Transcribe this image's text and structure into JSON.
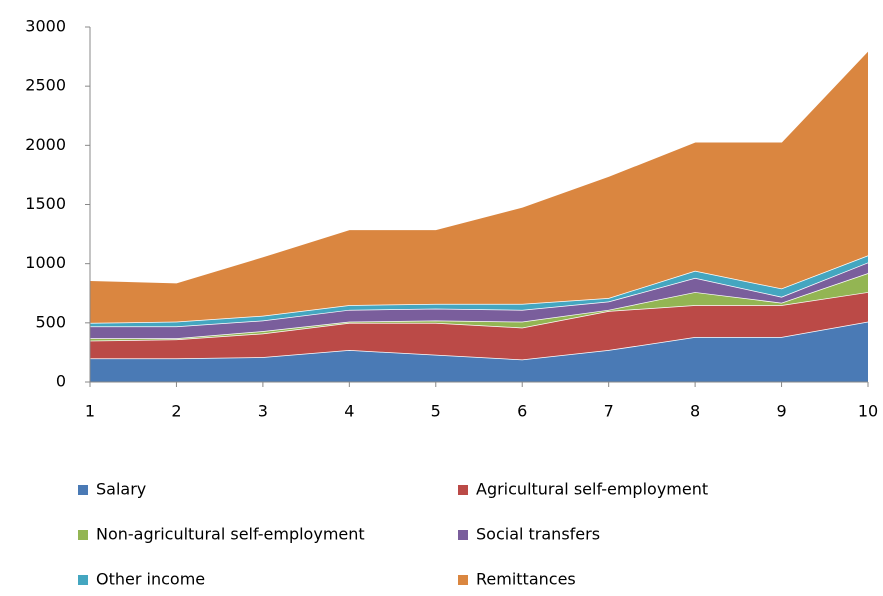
{
  "chart_data": {
    "type": "stacked_area",
    "x": [
      1,
      2,
      3,
      4,
      5,
      6,
      7,
      8,
      9,
      10
    ],
    "xlim": [
      1,
      10
    ],
    "xticks": [
      1,
      2,
      3,
      4,
      5,
      6,
      7,
      8,
      9,
      10
    ],
    "ylim": [
      0,
      3000
    ],
    "yticks": [
      0,
      500,
      1000,
      1500,
      2000,
      2500,
      3000
    ],
    "series": [
      {
        "name": "Salary",
        "color": "#4a7ab5",
        "values": [
          200,
          200,
          210,
          270,
          230,
          190,
          270,
          380,
          380,
          510
        ]
      },
      {
        "name": "Agricultural self-employment",
        "color": "#bb4a47",
        "values": [
          150,
          160,
          200,
          230,
          270,
          270,
          330,
          270,
          270,
          250
        ]
      },
      {
        "name": "Non-agricultural self-employment",
        "color": "#93b553",
        "values": [
          20,
          10,
          20,
          10,
          20,
          50,
          10,
          110,
          20,
          160
        ]
      },
      {
        "name": "Social transfers",
        "color": "#7a5e9c",
        "values": [
          100,
          100,
          90,
          100,
          100,
          100,
          70,
          120,
          50,
          90
        ]
      },
      {
        "name": "Other income",
        "color": "#44a6c0",
        "values": [
          30,
          40,
          40,
          40,
          40,
          50,
          30,
          60,
          70,
          60
        ]
      },
      {
        "name": "Remittances",
        "color": "#da8640",
        "values": [
          360,
          330,
          500,
          640,
          630,
          820,
          1030,
          1090,
          1240,
          1730
        ]
      }
    ]
  }
}
